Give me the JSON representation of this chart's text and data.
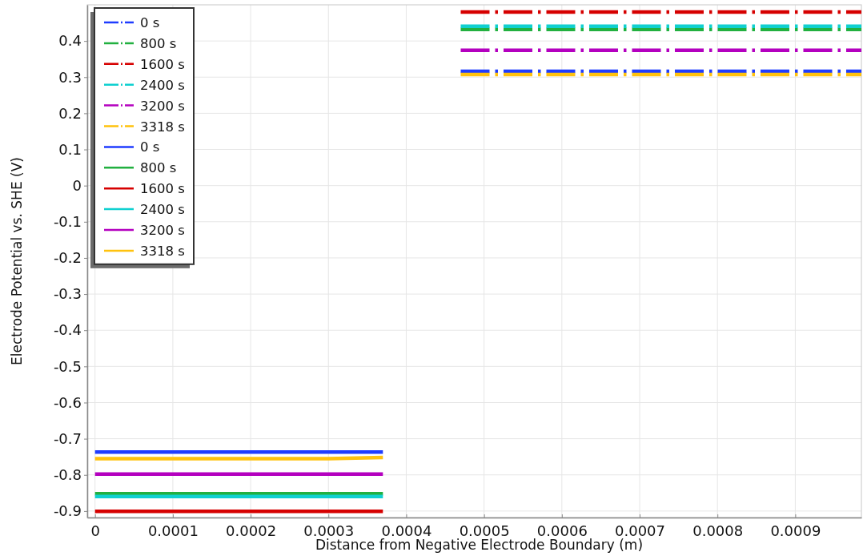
{
  "chart_data": {
    "type": "line",
    "xlabel": "Distance from Negative Electrode Boundary (m)",
    "ylabel": "Electrode Potential vs. SHE (V)",
    "xlim": [
      -1e-05,
      0.000985
    ],
    "ylim": [
      -0.918,
      0.5
    ],
    "xticks": [
      0,
      0.0001,
      0.0002,
      0.0003,
      0.0004,
      0.0005,
      0.0006,
      0.0007,
      0.0008,
      0.0009
    ],
    "yticks": [
      -0.9,
      -0.8,
      -0.7,
      -0.6,
      -0.5,
      -0.4,
      -0.3,
      -0.2,
      -0.1,
      0,
      0.1,
      0.2,
      0.3,
      0.4
    ],
    "grid": true,
    "legend": "top left",
    "series": [
      {
        "name": "0 s",
        "color": "#1f3cff",
        "line_style": "dashdot",
        "x": [
          0.00047,
          0.000985
        ],
        "values": [
          0.316,
          0.316
        ]
      },
      {
        "name": "800 s",
        "color": "#22b040",
        "line_style": "dashdot",
        "x": [
          0.00047,
          0.000985
        ],
        "values": [
          0.432,
          0.432
        ]
      },
      {
        "name": "1600 s",
        "color": "#d60000",
        "line_style": "dashdot",
        "x": [
          0.00047,
          0.000985
        ],
        "values": [
          0.48,
          0.48
        ]
      },
      {
        "name": "2400 s",
        "color": "#10d0d0",
        "line_style": "dashdot",
        "x": [
          0.00047,
          0.000985
        ],
        "values": [
          0.441,
          0.441
        ]
      },
      {
        "name": "3200 s",
        "color": "#b400bf",
        "line_style": "dashdot",
        "x": [
          0.00047,
          0.000985
        ],
        "values": [
          0.374,
          0.374
        ]
      },
      {
        "name": "3318 s",
        "color": "#ffc20e",
        "line_style": "dashdot",
        "x": [
          0.00047,
          0.000985
        ],
        "values": [
          0.307,
          0.307
        ]
      },
      {
        "name": "0 s",
        "color": "#1f3cff",
        "line_style": "solid",
        "x": [
          0,
          0.00037
        ],
        "values": [
          -0.737,
          -0.737
        ]
      },
      {
        "name": "800 s",
        "color": "#22b040",
        "line_style": "solid",
        "x": [
          0,
          0.00037
        ],
        "values": [
          -0.852,
          -0.852
        ]
      },
      {
        "name": "1600 s",
        "color": "#d60000",
        "line_style": "solid",
        "x": [
          0,
          0.00037
        ],
        "values": [
          -0.901,
          -0.901
        ]
      },
      {
        "name": "2400 s",
        "color": "#10d0d0",
        "line_style": "solid",
        "x": [
          0,
          0.00037
        ],
        "values": [
          -0.86,
          -0.86
        ]
      },
      {
        "name": "3200 s",
        "color": "#b400bf",
        "line_style": "solid",
        "x": [
          0,
          0.00037
        ],
        "values": [
          -0.798,
          -0.798
        ]
      },
      {
        "name": "3318 s",
        "color": "#ffc20e",
        "line_style": "solid",
        "x": [
          0,
          0.0003,
          0.00037
        ],
        "values": [
          -0.755,
          -0.755,
          -0.752
        ]
      }
    ]
  }
}
